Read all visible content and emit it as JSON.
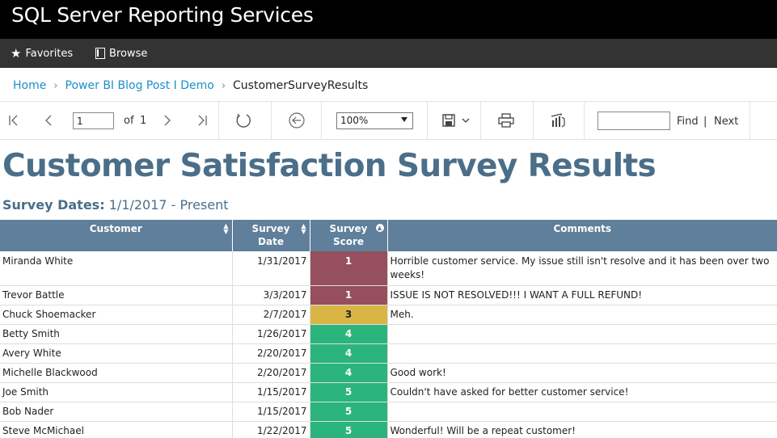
{
  "app": {
    "title": "SQL Server Reporting Services"
  },
  "nav": {
    "favorites": "Favorites",
    "browse": "Browse"
  },
  "breadcrumb": {
    "items": [
      "Home",
      "Power BI Blog Post I Demo"
    ],
    "current": "CustomerSurveyResults"
  },
  "toolbar": {
    "page_value": "1",
    "of_label": "of",
    "total_pages": "1",
    "zoom": "100%",
    "find_label": "Find",
    "separator": "|",
    "next_label": "Next",
    "icons": [
      "first-page-icon",
      "previous-page-icon",
      "next-page-icon",
      "last-page-icon",
      "refresh-icon",
      "back-icon",
      "save-icon",
      "print-icon",
      "powerbi-icon"
    ]
  },
  "report": {
    "title": "Customer Satisfaction Survey Results",
    "dates_label": "Survey Dates:",
    "dates_value": "1/1/2017 - Present",
    "columns": [
      "Customer",
      "Survey Date",
      "Survey Score",
      "Comments"
    ],
    "colors": {
      "score_1": "#96505d",
      "score_3": "#d9b545",
      "score_4": "#2bb57c",
      "score_5": "#2bb57c",
      "header": "#5f7f9b",
      "title": "#4b6e89"
    },
    "rows": [
      {
        "customer": "Miranda White",
        "date": "1/31/2017",
        "score": "1",
        "comment": "Horrible customer service. My issue still isn't resolve and it has been over two weeks!"
      },
      {
        "customer": "Trevor Battle",
        "date": "3/3/2017",
        "score": "1",
        "comment": "ISSUE IS NOT RESOLVED!!! I WANT A FULL REFUND!"
      },
      {
        "customer": "Chuck Shoemacker",
        "date": "2/7/2017",
        "score": "3",
        "comment": "Meh."
      },
      {
        "customer": "Betty Smith",
        "date": "1/26/2017",
        "score": "4",
        "comment": ""
      },
      {
        "customer": "Avery White",
        "date": "2/20/2017",
        "score": "4",
        "comment": ""
      },
      {
        "customer": "Michelle Blackwood",
        "date": "2/20/2017",
        "score": "4",
        "comment": "Good work!"
      },
      {
        "customer": "Joe Smith",
        "date": "1/15/2017",
        "score": "5",
        "comment": "Couldn't have asked for better customer service!"
      },
      {
        "customer": "Bob Nader",
        "date": "1/15/2017",
        "score": "5",
        "comment": ""
      },
      {
        "customer": "Steve McMichael",
        "date": "1/22/2017",
        "score": "5",
        "comment": "Wonderful! Will be a repeat customer!"
      }
    ]
  }
}
